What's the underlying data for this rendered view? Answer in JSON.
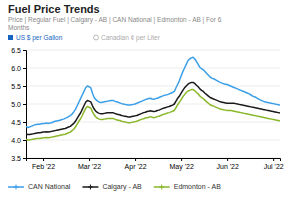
{
  "chart_data": {
    "type": "line",
    "title": "Fuel Price Trends",
    "subtitle": "Price | Regular Fuel | Calgary - AB | CAN National | Edmonton - AB | For 6\nMonths",
    "annotations": [
      "US $ per Gallon",
      "Canadian ¢ per Liter"
    ],
    "categories": [
      null,
      null,
      null,
      null,
      null,
      null,
      null,
      null,
      null,
      null,
      "Feb '22",
      null,
      null,
      null,
      null,
      null,
      null,
      null,
      null,
      null,
      null,
      null,
      null,
      null,
      null,
      null,
      null,
      null,
      null,
      null,
      null,
      null,
      null,
      null,
      null,
      null,
      null,
      "Mar '22",
      null,
      null,
      null,
      null,
      null,
      null,
      null,
      null,
      null,
      null,
      null,
      null,
      null,
      null,
      null,
      null,
      null,
      null,
      null,
      null,
      null,
      null,
      null,
      null,
      null,
      null,
      "Apr '22",
      null,
      null,
      null,
      null,
      null,
      null,
      null,
      null,
      null,
      null,
      null,
      null,
      null,
      null,
      null,
      null,
      null,
      null,
      null,
      null,
      null,
      null,
      null,
      null,
      null,
      null,
      "May '22",
      null,
      null,
      null,
      null,
      null,
      null,
      null,
      null,
      null,
      null,
      null,
      null,
      null,
      null,
      null,
      null,
      null,
      null,
      null,
      null,
      null,
      null,
      null,
      null,
      null,
      null,
      "Jun '22",
      null,
      null,
      null,
      null,
      null,
      null,
      null,
      null,
      null,
      null,
      null,
      null,
      null,
      null,
      null,
      null,
      null,
      null,
      null,
      null,
      null,
      null,
      null,
      null,
      null,
      null,
      "Jul '22",
      null,
      null,
      null,
      null
    ],
    "series": [
      {
        "name": "CAN National",
        "color": "#3b9fe8",
        "values": [
          4.38,
          4.35,
          4.36,
          4.38,
          4.4,
          4.42,
          4.43,
          4.44,
          4.44,
          4.45,
          4.46,
          4.46,
          4.47,
          4.46,
          4.47,
          4.48,
          4.5,
          4.52,
          4.53,
          4.54,
          4.55,
          4.57,
          4.58,
          4.6,
          4.62,
          4.65,
          4.68,
          4.72,
          4.78,
          4.85,
          4.95,
          5.05,
          5.15,
          5.25,
          5.35,
          5.45,
          5.5,
          5.48,
          5.45,
          5.3,
          5.18,
          5.12,
          5.08,
          5.05,
          5.04,
          5.05,
          5.06,
          5.07,
          5.08,
          5.09,
          5.1,
          5.1,
          5.08,
          5.06,
          5.05,
          5.03,
          5.01,
          5.0,
          4.99,
          4.98,
          4.97,
          4.97,
          4.98,
          4.99,
          5.0,
          5.02,
          5.04,
          5.06,
          5.08,
          5.1,
          5.12,
          5.14,
          5.15,
          5.16,
          5.14,
          5.13,
          5.15,
          5.16,
          5.18,
          5.2,
          5.22,
          5.24,
          5.25,
          5.26,
          5.28,
          5.3,
          5.32,
          5.35,
          5.45,
          5.55,
          5.65,
          5.78,
          5.9,
          6.0,
          6.1,
          6.2,
          6.25,
          6.28,
          6.3,
          6.25,
          6.18,
          6.1,
          6.02,
          5.98,
          5.95,
          5.9,
          5.85,
          5.8,
          5.75,
          5.72,
          5.7,
          5.68,
          5.65,
          5.62,
          5.6,
          5.58,
          5.56,
          5.55,
          5.54,
          5.52,
          5.5,
          5.48,
          5.46,
          5.44,
          5.42,
          5.4,
          5.38,
          5.36,
          5.34,
          5.32,
          5.3,
          5.28,
          5.25,
          5.22,
          5.2,
          5.18,
          5.15,
          5.12,
          5.1,
          5.08,
          5.06,
          5.05,
          5.04,
          5.03,
          5.02,
          5.01,
          5.0,
          4.99,
          4.98,
          4.97
        ]
      },
      {
        "name": "Calgary - AB",
        "color": "#1a1a1a",
        "values": [
          4.18,
          4.15,
          4.15,
          4.16,
          4.17,
          4.18,
          4.19,
          4.2,
          4.2,
          4.21,
          4.22,
          4.22,
          4.23,
          4.22,
          4.23,
          4.24,
          4.25,
          4.26,
          4.27,
          4.28,
          4.29,
          4.3,
          4.31,
          4.32,
          4.34,
          4.36,
          4.38,
          4.42,
          4.46,
          4.52,
          4.6,
          4.68,
          4.75,
          4.85,
          4.95,
          5.05,
          5.1,
          5.08,
          5.06,
          4.95,
          4.86,
          4.8,
          4.76,
          4.74,
          4.73,
          4.73,
          4.74,
          4.75,
          4.76,
          4.76,
          4.76,
          4.76,
          4.74,
          4.72,
          4.71,
          4.7,
          4.68,
          4.67,
          4.66,
          4.65,
          4.64,
          4.64,
          4.65,
          4.66,
          4.67,
          4.68,
          4.7,
          4.72,
          4.74,
          4.76,
          4.77,
          4.79,
          4.8,
          4.81,
          4.8,
          4.79,
          4.8,
          4.82,
          4.83,
          4.85,
          4.87,
          4.89,
          4.9,
          4.92,
          4.93,
          4.95,
          4.97,
          5.0,
          5.08,
          5.16,
          5.22,
          5.3,
          5.38,
          5.45,
          5.5,
          5.55,
          5.58,
          5.6,
          5.6,
          5.57,
          5.52,
          5.48,
          5.42,
          5.38,
          5.35,
          5.3,
          5.26,
          5.22,
          5.18,
          5.16,
          5.14,
          5.12,
          5.1,
          5.08,
          5.06,
          5.05,
          5.04,
          5.03,
          5.02,
          5.02,
          5.02,
          5.02,
          5.02,
          5.01,
          5.0,
          4.99,
          4.98,
          4.97,
          4.96,
          4.95,
          4.94,
          4.93,
          4.92,
          4.91,
          4.9,
          4.89,
          4.88,
          4.87,
          4.86,
          4.85,
          4.84,
          4.83,
          4.82,
          4.81,
          4.8,
          4.79,
          4.78,
          4.77,
          4.76,
          4.75
        ]
      },
      {
        "name": "Edmonton - AB",
        "color": "#8ab82a",
        "values": [
          4.02,
          4.0,
          4.0,
          4.01,
          4.02,
          4.03,
          4.04,
          4.04,
          4.04,
          4.05,
          4.06,
          4.06,
          4.07,
          4.06,
          4.07,
          4.08,
          4.09,
          4.1,
          4.11,
          4.12,
          4.13,
          4.14,
          4.15,
          4.16,
          4.18,
          4.2,
          4.22,
          4.26,
          4.3,
          4.36,
          4.44,
          4.52,
          4.59,
          4.68,
          4.78,
          4.88,
          4.93,
          4.91,
          4.89,
          4.78,
          4.7,
          4.64,
          4.6,
          4.58,
          4.57,
          4.57,
          4.58,
          4.59,
          4.6,
          4.6,
          4.6,
          4.6,
          4.58,
          4.56,
          4.55,
          4.54,
          4.52,
          4.51,
          4.5,
          4.49,
          4.48,
          4.48,
          4.49,
          4.5,
          4.51,
          4.52,
          4.54,
          4.56,
          4.58,
          4.59,
          4.61,
          4.62,
          4.63,
          4.65,
          4.63,
          4.62,
          4.63,
          4.65,
          4.66,
          4.68,
          4.7,
          4.72,
          4.73,
          4.75,
          4.76,
          4.78,
          4.8,
          4.82,
          4.9,
          4.98,
          5.05,
          5.12,
          5.2,
          5.26,
          5.32,
          5.36,
          5.38,
          5.4,
          5.4,
          5.37,
          5.32,
          5.28,
          5.22,
          5.18,
          5.15,
          5.1,
          5.06,
          5.02,
          4.98,
          4.96,
          4.94,
          4.92,
          4.9,
          4.88,
          4.86,
          4.85,
          4.84,
          4.83,
          4.82,
          4.82,
          4.82,
          4.81,
          4.8,
          4.79,
          4.78,
          4.77,
          4.76,
          4.75,
          4.74,
          4.73,
          4.72,
          4.71,
          4.7,
          4.69,
          4.68,
          4.67,
          4.66,
          4.65,
          4.64,
          4.63,
          4.62,
          4.61,
          4.6,
          4.59,
          4.58,
          4.57,
          4.56,
          4.55,
          4.54,
          4.53
        ]
      }
    ],
    "ylim": [
      3.5,
      6.5
    ],
    "yticks": [
      3.5,
      {
        "value": 4.0,
        "label": "4.0"
      },
      4.5,
      {
        "value": 5.0,
        "label": "5.0"
      },
      5.5,
      {
        "value": 6.0,
        "label": "6.0"
      },
      6.5
    ],
    "grid": true,
    "legend": "bottom"
  }
}
